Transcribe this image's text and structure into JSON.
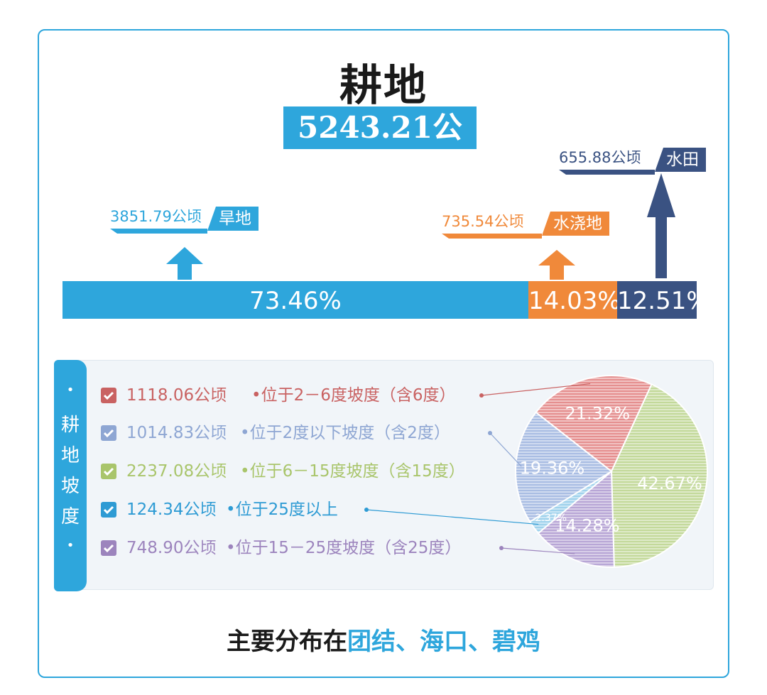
{
  "title": "耕地",
  "total": "5243.21公顷",
  "categories": [
    {
      "value": "3851.79公顷",
      "label": "旱地",
      "percent": "73.46%",
      "color": "#2ea6dc"
    },
    {
      "value": "735.54公顷",
      "label": "水浇地",
      "percent": "14.03%",
      "color": "#f0893a"
    },
    {
      "value": "655.88公顷",
      "label": "水田",
      "percent": "12.51%",
      "color": "#3a5282"
    }
  ],
  "slope_panel": {
    "side_label": [
      "•",
      "耕",
      "地",
      "坡",
      "度",
      "•"
    ],
    "items": [
      {
        "amount": "1118.06公顷",
        "desc": "•位于2－6度坡度（含6度）",
        "color": "#c96262"
      },
      {
        "amount": "1014.83公顷",
        "desc": "•位于2度以下坡度（含2度）",
        "color": "#8ea6d3"
      },
      {
        "amount": "2237.08公顷",
        "desc": "•位于6－15度坡度（含15度）",
        "color": "#a9c56b"
      },
      {
        "amount": "124.34公顷",
        "desc": "•位于25度以上",
        "color": "#2e9bd4"
      },
      {
        "amount": "748.90公顷",
        "desc": "•位于15－25度坡度（含25度）",
        "color": "#9c84bd"
      }
    ]
  },
  "chart_data": [
    {
      "type": "bar",
      "categories": [
        "旱地",
        "水浇地",
        "水田"
      ],
      "values": [
        73.46,
        14.03,
        12.51
      ],
      "amounts": [
        3851.79,
        735.54,
        655.88
      ],
      "colors": [
        "#2ea6dc",
        "#f0893a",
        "#3a5282"
      ]
    },
    {
      "type": "pie",
      "categories": [
        "位于2－6度坡度（含6度）",
        "位于6－15度坡度（含15度）",
        "位于15－25度坡度（含25度）",
        "位于25度以上",
        "位于2度以下坡度（含2度）"
      ],
      "values": [
        21.32,
        42.67,
        14.28,
        2.37,
        19.36
      ],
      "labels": [
        "21.32%",
        "42.67%",
        "14.28%",
        "2.37%",
        "19.36%"
      ],
      "colors": [
        "#e58f8f",
        "#c3d99a",
        "#b8a6d6",
        "#9fd2ec",
        "#a9bde3"
      ]
    }
  ],
  "footer": {
    "prefix": "主要分布在",
    "places": "团结、海口、碧鸡"
  }
}
